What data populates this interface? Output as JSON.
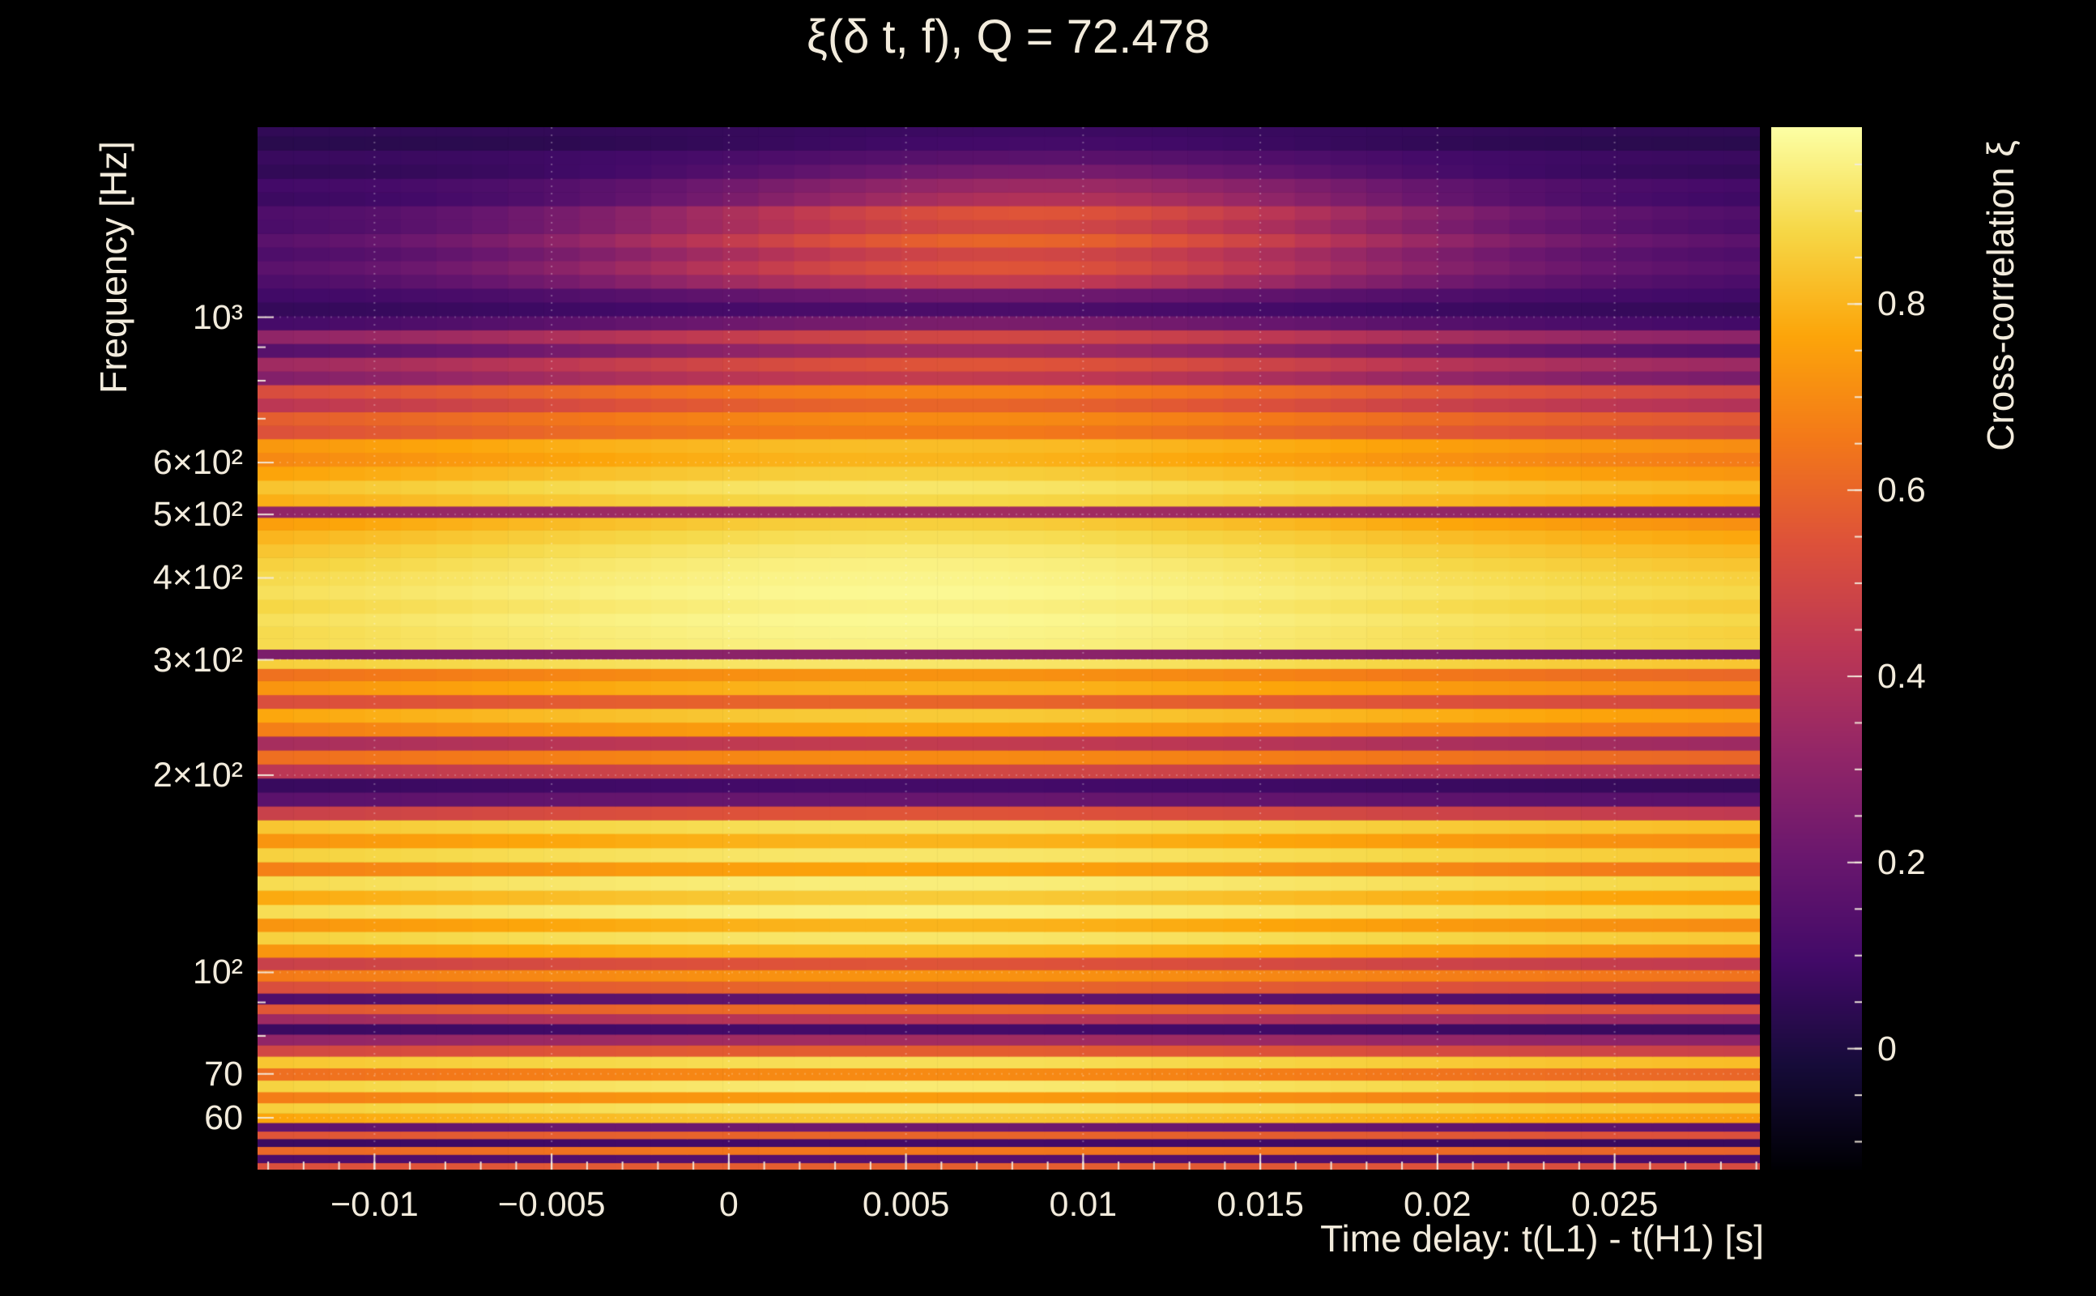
{
  "figure": {
    "background": "#000000",
    "text_color": "#f2ebdc"
  },
  "chart_data": {
    "type": "heatmap",
    "title": "ξ(δ t, f), Q = 72.478",
    "xlabel": "Time delay: t(L1) - t(H1) [s]",
    "ylabel": "Frequency [Hz]",
    "colorbar_label": "Cross-correlation ξ",
    "x_range_s": [
      -0.0133,
      0.0291
    ],
    "y_range_hz": [
      50,
      1950
    ],
    "y_scale": "log",
    "value_range": [
      -0.13,
      0.99
    ],
    "colormap": "inferno",
    "colormap_stops": [
      [
        0.0,
        "#000004"
      ],
      [
        0.1,
        "#160b39"
      ],
      [
        0.2,
        "#420a68"
      ],
      [
        0.3,
        "#6a176e"
      ],
      [
        0.4,
        "#932667"
      ],
      [
        0.5,
        "#bc3754"
      ],
      [
        0.6,
        "#dd513a"
      ],
      [
        0.7,
        "#f37819"
      ],
      [
        0.8,
        "#fca50a"
      ],
      [
        0.9,
        "#f6d746"
      ],
      [
        1.0,
        "#fcffa4"
      ]
    ],
    "x_ticks": [
      {
        "value": -0.01,
        "label": "−0.01"
      },
      {
        "value": -0.005,
        "label": "−0.005"
      },
      {
        "value": 0,
        "label": "0"
      },
      {
        "value": 0.005,
        "label": "0.005"
      },
      {
        "value": 0.01,
        "label": "0.01"
      },
      {
        "value": 0.015,
        "label": "0.015"
      },
      {
        "value": 0.02,
        "label": "0.02"
      },
      {
        "value": 0.025,
        "label": "0.025"
      }
    ],
    "x_minor_step_s": 0.001,
    "y_ticks": [
      {
        "value": 60,
        "label": "60"
      },
      {
        "value": 70,
        "label": "70"
      },
      {
        "value": 100,
        "label": "10²"
      },
      {
        "value": 200,
        "label": "2×10²"
      },
      {
        "value": 300,
        "label": "3×10²"
      },
      {
        "value": 400,
        "label": "4×10²"
      },
      {
        "value": 500,
        "label": "5×10²"
      },
      {
        "value": 600,
        "label": "6×10²"
      },
      {
        "value": 1000,
        "label": "10³"
      }
    ],
    "y_minor_ticks": [
      80,
      90,
      700,
      800,
      900
    ],
    "colorbar_ticks": [
      {
        "value": 0,
        "label": "0"
      },
      {
        "value": 0.2,
        "label": "0.2"
      },
      {
        "value": 0.4,
        "label": "0.4"
      },
      {
        "value": 0.6,
        "label": "0.6"
      },
      {
        "value": 0.8,
        "label": "0.8"
      }
    ],
    "colorbar_minor_step": 0.05,
    "time_bins": 42,
    "row_defaults": {
      "t0_s": 0.005,
      "sigma_s": 0.013
    },
    "rows_format": [
      "frequency_hz",
      "xi_edge",
      "xi_peak",
      "t0_s",
      "sigma_s"
    ],
    "rows": [
      [
        50.5,
        0.5,
        0.58
      ],
      [
        52,
        0.1,
        0.15
      ],
      [
        53.5,
        0.58,
        0.65
      ],
      [
        55,
        0.06,
        0.1
      ],
      [
        56.5,
        0.52,
        0.6
      ],
      [
        58,
        0.15,
        0.22
      ],
      [
        60,
        0.72,
        0.84
      ],
      [
        62,
        0.82,
        0.92
      ],
      [
        64.5,
        0.62,
        0.74
      ],
      [
        67,
        0.83,
        0.93
      ],
      [
        70,
        0.58,
        0.7
      ],
      [
        73,
        0.8,
        0.9
      ],
      [
        76,
        0.45,
        0.58
      ],
      [
        79,
        0.28,
        0.36
      ],
      [
        82,
        0.06,
        0.1
      ],
      [
        85,
        0.3,
        0.42
      ],
      [
        88,
        0.52,
        0.62
      ],
      [
        91,
        0.1,
        0.18
      ],
      [
        95,
        0.48,
        0.6
      ],
      [
        99,
        0.62,
        0.72
      ],
      [
        103,
        0.42,
        0.55
      ],
      [
        108,
        0.68,
        0.8
      ],
      [
        113,
        0.83,
        0.92
      ],
      [
        118,
        0.68,
        0.8
      ],
      [
        124,
        0.86,
        0.95
      ],
      [
        130,
        0.73,
        0.85
      ],
      [
        137,
        0.86,
        0.94
      ],
      [
        144,
        0.62,
        0.76
      ],
      [
        151,
        0.83,
        0.92
      ],
      [
        159,
        0.68,
        0.8
      ],
      [
        167,
        0.8,
        0.9
      ],
      [
        175,
        0.42,
        0.55
      ],
      [
        184,
        0.14,
        0.2
      ],
      [
        193,
        0.05,
        0.1
      ],
      [
        203,
        0.38,
        0.5
      ],
      [
        213,
        0.58,
        0.7
      ],
      [
        224,
        0.32,
        0.45
      ],
      [
        235,
        0.62,
        0.75
      ],
      [
        247,
        0.72,
        0.85
      ],
      [
        259,
        0.48,
        0.6
      ],
      [
        272,
        0.68,
        0.8
      ],
      [
        286,
        0.58,
        0.72
      ],
      [
        296,
        0.82,
        0.92
      ],
      [
        306,
        0.22,
        0.3
      ],
      [
        317,
        0.85,
        0.95
      ],
      [
        330,
        0.84,
        0.96
      ],
      [
        345,
        0.86,
        0.97
      ],
      [
        362,
        0.83,
        0.95
      ],
      [
        380,
        0.86,
        0.97
      ],
      [
        400,
        0.84,
        0.96
      ],
      [
        420,
        0.81,
        0.95
      ],
      [
        440,
        0.78,
        0.93
      ],
      [
        462,
        0.74,
        0.9
      ],
      [
        485,
        0.68,
        0.86
      ],
      [
        505,
        0.28,
        0.36
      ],
      [
        525,
        0.73,
        0.88
      ],
      [
        550,
        0.78,
        0.92
      ],
      [
        578,
        0.7,
        0.86
      ],
      [
        607,
        0.63,
        0.8
      ],
      [
        637,
        0.68,
        0.82
      ],
      [
        668,
        0.48,
        0.66,
        0.005,
        0.012
      ],
      [
        700,
        0.53,
        0.7,
        0.006,
        0.012
      ],
      [
        735,
        0.38,
        0.6,
        0.006,
        0.011
      ],
      [
        770,
        0.48,
        0.68,
        0.006,
        0.011
      ],
      [
        808,
        0.22,
        0.45,
        0.006,
        0.011
      ],
      [
        848,
        0.32,
        0.55,
        0.007,
        0.01
      ],
      [
        890,
        0.12,
        0.35,
        0.007,
        0.01
      ],
      [
        934,
        0.28,
        0.5,
        0.007,
        0.01
      ],
      [
        980,
        0.08,
        0.25,
        0.007,
        0.01
      ],
      [
        1030,
        0.05,
        0.12,
        0.007,
        0.01
      ],
      [
        1080,
        0.08,
        0.22,
        0.0075,
        0.009
      ],
      [
        1135,
        0.1,
        0.45,
        0.0075,
        0.009
      ],
      [
        1190,
        0.13,
        0.55,
        0.0075,
        0.009
      ],
      [
        1250,
        0.1,
        0.5,
        0.008,
        0.009
      ],
      [
        1310,
        0.13,
        0.6,
        0.008,
        0.009
      ],
      [
        1375,
        0.09,
        0.5,
        0.008,
        0.009
      ],
      [
        1445,
        0.11,
        0.55,
        0.0085,
        0.0085
      ],
      [
        1515,
        0.07,
        0.4,
        0.009,
        0.008
      ],
      [
        1590,
        0.09,
        0.34,
        0.009,
        0.008
      ],
      [
        1670,
        0.05,
        0.24,
        0.009,
        0.0075
      ],
      [
        1755,
        0.07,
        0.16,
        0.009,
        0.0075
      ],
      [
        1845,
        0.03,
        0.1,
        0.009,
        0.007
      ],
      [
        1935,
        0.05,
        0.08,
        0.009,
        0.007
      ]
    ]
  }
}
